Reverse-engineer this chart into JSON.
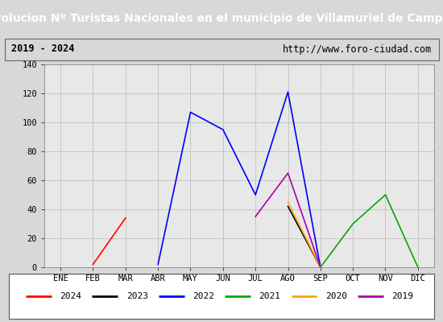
{
  "title": "Evolucion Nº Turistas Nacionales en el municipio de Villamuriel de Campos",
  "subtitle_left": "2019 - 2024",
  "subtitle_right": "http://www.foro-ciudad.com",
  "months": [
    "ENE",
    "FEB",
    "MAR",
    "ABR",
    "MAY",
    "JUN",
    "JUL",
    "AGO",
    "SEP",
    "OCT",
    "NOV",
    "DIC"
  ],
  "ylim": [
    0,
    140
  ],
  "yticks": [
    0,
    20,
    40,
    60,
    80,
    100,
    120,
    140
  ],
  "series": {
    "2024": {
      "color": "#ff0000",
      "data": [
        null,
        2,
        34,
        null,
        null,
        null,
        null,
        null,
        null,
        null,
        null,
        null
      ]
    },
    "2023": {
      "color": "#000000",
      "data": [
        null,
        null,
        null,
        null,
        null,
        null,
        null,
        42,
        0,
        null,
        null,
        null
      ]
    },
    "2022": {
      "color": "#0000ff",
      "data": [
        null,
        null,
        null,
        2,
        107,
        95,
        50,
        121,
        0,
        null,
        null,
        null
      ]
    },
    "2021": {
      "color": "#00aa00",
      "data": [
        null,
        null,
        null,
        null,
        null,
        null,
        null,
        null,
        0,
        30,
        50,
        0
      ]
    },
    "2020": {
      "color": "#ffa500",
      "data": [
        null,
        null,
        null,
        null,
        null,
        null,
        null,
        45,
        0,
        null,
        null,
        null
      ]
    },
    "2019": {
      "color": "#aa00aa",
      "data": [
        null,
        null,
        null,
        null,
        null,
        null,
        35,
        65,
        0,
        null,
        null,
        null
      ]
    }
  },
  "title_bg": "#3a7bbf",
  "title_color": "#ffffff",
  "title_fontsize": 10,
  "plot_bg": "#d8d8d8",
  "inner_bg": "#e8e8e8",
  "subtitle_fontsize": 8.5,
  "legend_order": [
    "2024",
    "2023",
    "2022",
    "2021",
    "2020",
    "2019"
  ]
}
